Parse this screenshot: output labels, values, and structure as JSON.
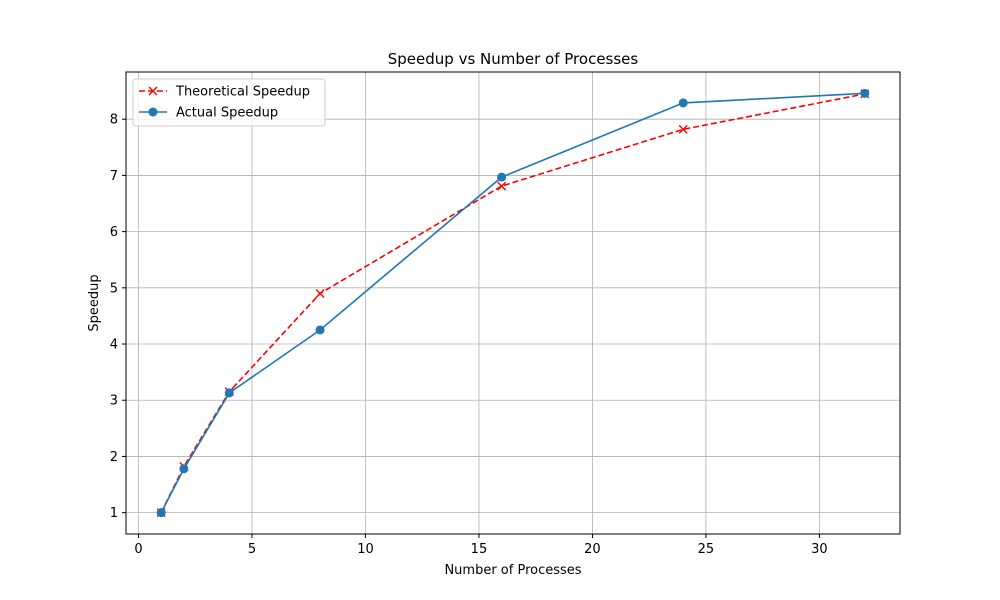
{
  "chart_data": {
    "type": "line",
    "title": "Speedup vs Number of Processes",
    "xlabel": "Number of Processes",
    "ylabel": "Speedup",
    "xlim": [
      -0.55,
      33.55
    ],
    "ylim": [
      0.62,
      8.84
    ],
    "xticks": [
      0,
      5,
      10,
      15,
      20,
      25,
      30
    ],
    "yticks": [
      1,
      2,
      3,
      4,
      5,
      6,
      7,
      8
    ],
    "grid": true,
    "legend_position": "upper-left",
    "x": [
      1,
      2,
      4,
      8,
      16,
      24,
      32
    ],
    "series": [
      {
        "name": "Theoretical Speedup",
        "values": [
          1.0,
          1.82,
          3.15,
          4.9,
          6.81,
          7.82,
          8.45
        ],
        "color": "#ff0000",
        "line_style": "dashed",
        "marker": "x"
      },
      {
        "name": "Actual Speedup",
        "values": [
          1.0,
          1.78,
          3.13,
          4.25,
          6.97,
          8.29,
          8.46
        ],
        "color": "#1f77b4",
        "line_style": "solid",
        "marker": "circle"
      }
    ]
  }
}
